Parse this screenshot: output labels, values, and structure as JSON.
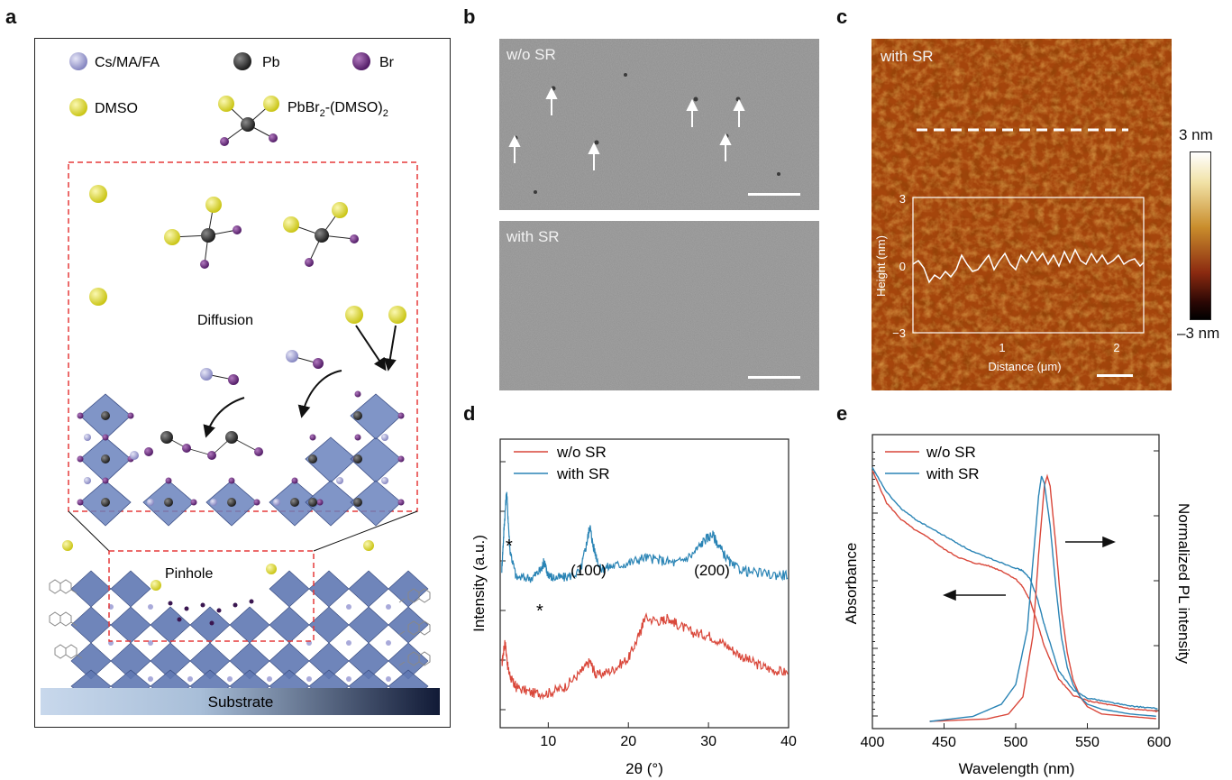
{
  "panels": {
    "a": {
      "label": "a",
      "legend": {
        "cs": "Cs/MA/FA",
        "pb": "Pb",
        "br": "Br",
        "dmso": "DMSO",
        "complex_base": "PbBr",
        "complex_sub1": "2",
        "complex_mid": "-(DMSO)",
        "complex_sub2": "2"
      },
      "diffusion": "Diffusion",
      "pinhole": "Pinhole",
      "substrate": "Substrate",
      "colors": {
        "cs": "#9d9fd0",
        "pb": "#2a2a2a",
        "br": "#6b2a7a",
        "dmso": "#e5e21a",
        "octahedron": "#5f78b3",
        "highlight": "#e63a3a"
      }
    },
    "b": {
      "label": "b",
      "top_title": "w/o SR",
      "bottom_title": "with SR"
    },
    "c": {
      "label": "c",
      "title": "with SR",
      "colorbar_max": "3 nm",
      "colorbar_min": "–3 nm",
      "inset_ylabel": "Height (nm)",
      "inset_xlabel": "Distance (μm)",
      "inset_yticks": [
        "3",
        "0",
        "−3"
      ],
      "inset_xticks": [
        "1",
        "2"
      ]
    },
    "d": {
      "label": "d"
    },
    "e": {
      "label": "e"
    }
  },
  "chart_data": [
    {
      "type": "line",
      "panel": "d",
      "xlabel": "2θ (°)",
      "ylabel": "Intensity (a.u.)",
      "xlim": [
        4,
        40
      ],
      "xticks": [
        "10",
        "20",
        "30",
        "40"
      ],
      "legend": [
        "w/o SR",
        "with SR"
      ],
      "legend_position": "top-left",
      "annotations": [
        "*",
        "*",
        "(100)",
        "(200)"
      ],
      "series": [
        {
          "name": "w/o SR",
          "color": "#d9473a",
          "x": [
            4.2,
            4.6,
            5.0,
            5.5,
            6,
            8,
            10,
            12,
            14,
            15.2,
            16,
            18,
            20,
            21.5,
            22,
            24,
            25,
            26,
            28,
            30,
            32,
            34,
            36,
            38,
            40
          ],
          "y": [
            0.22,
            0.3,
            0.2,
            0.16,
            0.14,
            0.12,
            0.12,
            0.14,
            0.19,
            0.23,
            0.18,
            0.2,
            0.24,
            0.33,
            0.38,
            0.37,
            0.38,
            0.36,
            0.33,
            0.32,
            0.29,
            0.25,
            0.22,
            0.2,
            0.19
          ]
        },
        {
          "name": "with SR",
          "color": "#2a84b5",
          "x": [
            4.2,
            4.5,
            4.8,
            5.2,
            6,
            8,
            9.2,
            9.5,
            9.8,
            10.5,
            12,
            14,
            14.8,
            15.2,
            15.6,
            16.5,
            18,
            20,
            22,
            24,
            26,
            28,
            29.5,
            30.5,
            31.5,
            33,
            35,
            38,
            40
          ],
          "y": [
            0.55,
            0.7,
            0.82,
            0.62,
            0.52,
            0.52,
            0.55,
            0.58,
            0.54,
            0.52,
            0.52,
            0.54,
            0.64,
            0.7,
            0.63,
            0.55,
            0.56,
            0.57,
            0.59,
            0.58,
            0.57,
            0.6,
            0.65,
            0.67,
            0.62,
            0.56,
            0.54,
            0.53,
            0.53
          ]
        }
      ]
    },
    {
      "type": "line",
      "panel": "e",
      "xlabel": "Wavelength (nm)",
      "ylabel": "Absorbance",
      "y2label": "Normalized PL intensity",
      "xlim": [
        400,
        600
      ],
      "xticks": [
        "400",
        "450",
        "500",
        "550",
        "600"
      ],
      "legend": [
        "w/o SR",
        "with SR"
      ],
      "legend_position": "top-left",
      "series": [
        {
          "name": "w/o SR absorbance",
          "color": "#d9473a",
          "x": [
            400,
            410,
            420,
            430,
            440,
            450,
            460,
            470,
            480,
            490,
            500,
            505,
            510,
            515,
            520,
            530,
            540,
            550,
            560,
            570,
            580,
            590,
            600
          ],
          "y": [
            0.92,
            0.8,
            0.74,
            0.7,
            0.67,
            0.63,
            0.6,
            0.58,
            0.57,
            0.55,
            0.52,
            0.49,
            0.44,
            0.36,
            0.27,
            0.15,
            0.09,
            0.07,
            0.06,
            0.05,
            0.04,
            0.035,
            0.03
          ]
        },
        {
          "name": "with SR absorbance",
          "color": "#2a84b5",
          "x": [
            400,
            410,
            420,
            430,
            440,
            450,
            460,
            470,
            480,
            490,
            500,
            505,
            510,
            515,
            520,
            530,
            540,
            550,
            560,
            570,
            580,
            590,
            600
          ],
          "y": [
            0.93,
            0.84,
            0.78,
            0.74,
            0.71,
            0.68,
            0.65,
            0.62,
            0.6,
            0.58,
            0.56,
            0.55,
            0.52,
            0.45,
            0.35,
            0.18,
            0.11,
            0.08,
            0.07,
            0.06,
            0.05,
            0.045,
            0.04
          ]
        },
        {
          "name": "w/o SR PL",
          "color": "#d9473a",
          "x": [
            440,
            480,
            495,
            505,
            512,
            516,
            520,
            522,
            524,
            528,
            532,
            536,
            540,
            545,
            550,
            560,
            580,
            600
          ],
          "y": [
            0.0,
            0.01,
            0.03,
            0.1,
            0.35,
            0.68,
            0.96,
            1.0,
            0.96,
            0.72,
            0.45,
            0.28,
            0.17,
            0.1,
            0.06,
            0.03,
            0.02,
            0.01
          ]
        },
        {
          "name": "with SR PL",
          "color": "#2a84b5",
          "x": [
            440,
            470,
            490,
            500,
            508,
            512,
            516,
            518,
            520,
            524,
            528,
            532,
            536,
            540,
            545,
            550,
            560,
            580,
            600
          ],
          "y": [
            0.0,
            0.02,
            0.07,
            0.15,
            0.37,
            0.65,
            0.92,
            1.0,
            0.97,
            0.8,
            0.55,
            0.34,
            0.22,
            0.15,
            0.1,
            0.07,
            0.05,
            0.03,
            0.02
          ]
        }
      ]
    }
  ]
}
